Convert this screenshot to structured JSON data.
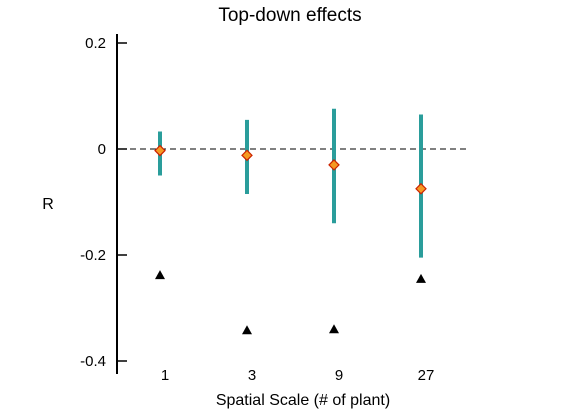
{
  "chart_data": {
    "type": "scatter",
    "title": "Top-down effects",
    "xlabel": "Spatial Scale (# of plant)",
    "ylabel": "R",
    "categories": [
      "1",
      "3",
      "9",
      "27"
    ],
    "ylim": [
      -0.4,
      0.2
    ],
    "yticks": [
      {
        "value": 0.2,
        "label": "0.2"
      },
      {
        "value": 0,
        "label": "0"
      },
      {
        "value": -0.2,
        "label": "-0.2"
      },
      {
        "value": -0.4,
        "label": "-0.4"
      }
    ],
    "reference_line": 0,
    "grid": false,
    "series": [
      {
        "kind": "errorbar",
        "color": "#2a9d9b",
        "marker_fill": "#f59a23",
        "marker_edge": "#cc2200",
        "values": [
          -0.003,
          -0.012,
          -0.03,
          -0.075
        ],
        "lower": [
          -0.05,
          -0.085,
          -0.14,
          -0.205
        ],
        "upper": [
          0.033,
          0.055,
          0.076,
          0.065
        ]
      },
      {
        "kind": "triangle",
        "color": "#000000",
        "values": [
          -0.238,
          -0.342,
          -0.34,
          -0.245
        ]
      }
    ]
  }
}
